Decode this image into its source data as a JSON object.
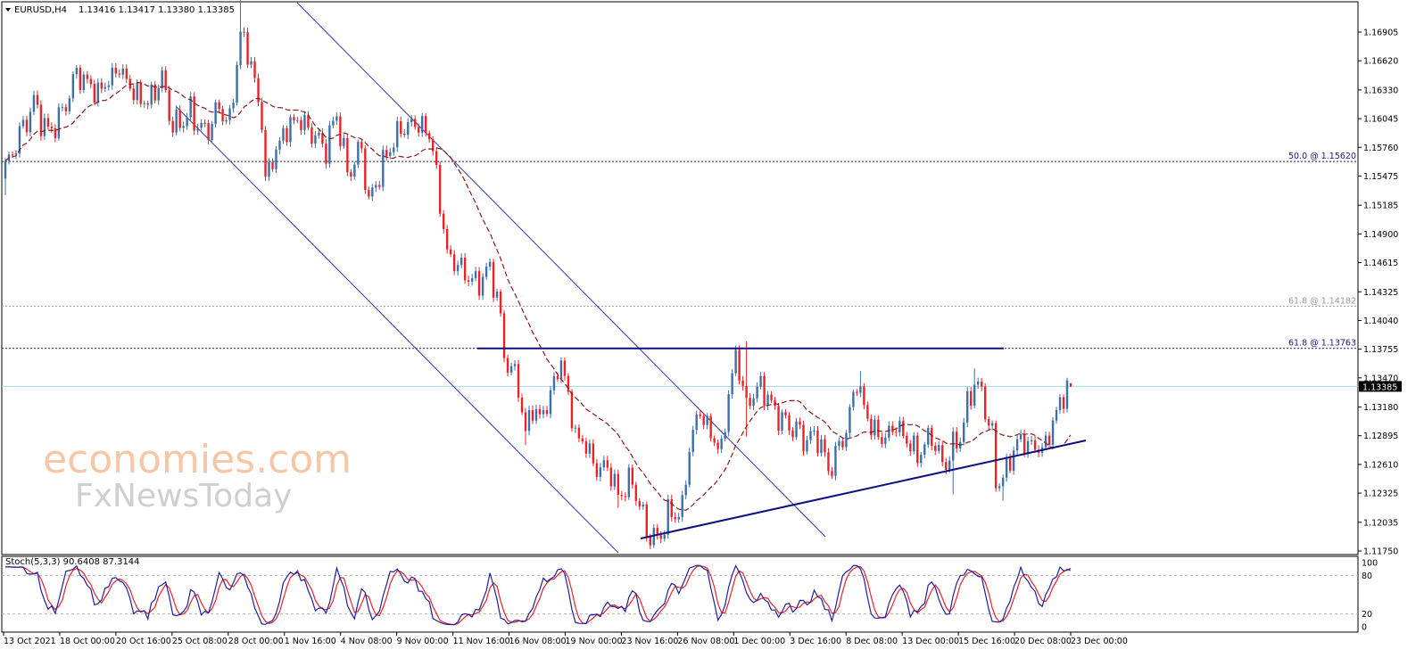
{
  "chart_data": {
    "type": "candlestick",
    "symbol_header": "EURUSD,H4",
    "ohlc_header": "1.13416 1.13417 1.13380 1.13385",
    "current_price_label": "1.13385",
    "current_price": 1.13385,
    "price_axis": {
      "ticks": [
        "1.16905",
        "1.16620",
        "1.16330",
        "1.16045",
        "1.15760",
        "1.15475",
        "1.15185",
        "1.14900",
        "1.14615",
        "1.14325",
        "1.14040",
        "1.13755",
        "1.13470",
        "1.13180",
        "1.12895",
        "1.12610",
        "1.12325",
        "1.12035",
        "1.11750"
      ],
      "range": [
        1.117,
        1.1712
      ]
    },
    "time_axis": {
      "labels": [
        "13 Oct 2021",
        "18 Oct 00:00",
        "20 Oct 16:00",
        "25 Oct 08:00",
        "28 Oct 00:00",
        "1 Nov 16:00",
        "4 Nov 08:00",
        "9 Nov 00:00",
        "11 Nov 16:00",
        "16 Nov 08:00",
        "19 Nov 00:00",
        "23 Nov 16:00",
        "26 Nov 08:00",
        "1 Dec 00:00",
        "3 Dec 16:00",
        "8 Dec 08:00",
        "13 Dec 00:00",
        "15 Dec 16:00",
        "20 Dec 08:00",
        "23 Dec 00:00"
      ]
    },
    "levels": [
      {
        "label": "50.0 @ 1.15620",
        "value": 1.1562,
        "color": "#1a1a80",
        "dash": "dense"
      },
      {
        "label": "61.8 @ 1.14182",
        "value": 1.14182,
        "color": "#9a9a9a",
        "dash": "dense"
      },
      {
        "label": "61.8 @ 1.13763",
        "value": 1.13763,
        "color": "#1a1a80",
        "dash": "dense"
      }
    ],
    "colors": {
      "bull": "#3d6fa8",
      "bear": "#e8232a",
      "ma": "#8b1a1a",
      "channel": "#3333aa",
      "trendline": "#0f0f80",
      "current_line": "#a8d8e8",
      "stoch_main": "#1f1f9e",
      "stoch_signal": "#e8232a"
    },
    "moving_average_visible": true,
    "stochastic": {
      "label": "Stoch(5,3,3) 90.6408 87.3144",
      "range": [
        0,
        100
      ],
      "ticks": [
        "100",
        "80",
        "20",
        "0"
      ],
      "levels": [
        80,
        20
      ]
    },
    "watermark": {
      "line1": "economies.com",
      "line2": "FxNewsToday"
    }
  }
}
